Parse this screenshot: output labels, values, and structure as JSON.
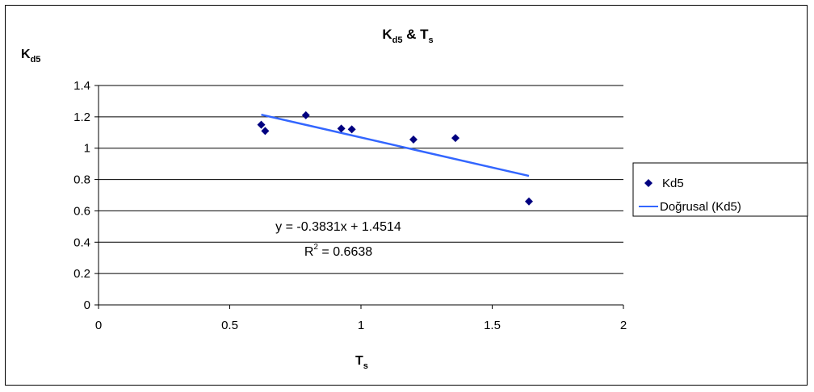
{
  "chart_data": {
    "type": "scatter",
    "title": {
      "main": "K",
      "sub": "d5",
      "rest": " & T",
      "sub2": "s"
    },
    "ylabel": {
      "main": "K",
      "sub": "d5"
    },
    "xlabel": {
      "main": "T",
      "sub": "s"
    },
    "xlim": [
      0,
      2
    ],
    "ylim": [
      0,
      1.4
    ],
    "x_ticks": [
      "0",
      "0.5",
      "1",
      "1.5",
      "2"
    ],
    "y_ticks": [
      "0",
      "0.2",
      "0.4",
      "0.6",
      "0.8",
      "1",
      "1.2",
      "1.4"
    ],
    "grid": "horizontal",
    "legend_position": "right",
    "series": [
      {
        "name": "Kd5",
        "color": "#000080",
        "marker": "diamond",
        "points": [
          {
            "x": 0.62,
            "y": 1.15
          },
          {
            "x": 0.635,
            "y": 1.11
          },
          {
            "x": 0.79,
            "y": 1.21
          },
          {
            "x": 0.925,
            "y": 1.125
          },
          {
            "x": 0.965,
            "y": 1.12
          },
          {
            "x": 1.2,
            "y": 1.055
          },
          {
            "x": 1.36,
            "y": 1.065
          },
          {
            "x": 1.64,
            "y": 0.66
          }
        ]
      }
    ],
    "trendline": {
      "name": "Doğrusal (Kd5)",
      "color": "#3366ff",
      "slope": -0.3831,
      "intercept": 1.4514,
      "x_range": [
        0.62,
        1.64
      ]
    },
    "annotations": {
      "equation": "y = -0.3831x + 1.4514",
      "r2_prefix": "R",
      "r2_sup": "2",
      "r2_rest": " = 0.6638"
    }
  }
}
